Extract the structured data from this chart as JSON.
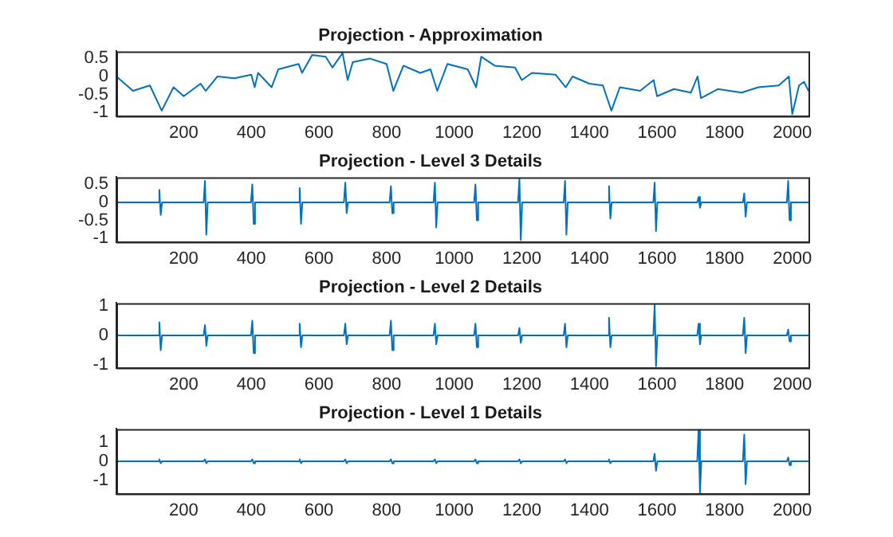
{
  "chart_data": [
    {
      "type": "line",
      "title": "Projection - Approximation",
      "color": "#0072bd",
      "xlim": [
        1,
        2048
      ],
      "xticks": [
        200,
        400,
        600,
        800,
        1000,
        1200,
        1400,
        1600,
        1800,
        2000
      ],
      "ylim": [
        -1.1,
        0.7
      ],
      "yticks": [
        -1,
        -0.5,
        0,
        0.5
      ],
      "x": [
        1,
        50,
        100,
        135,
        170,
        200,
        250,
        265,
        300,
        350,
        400,
        410,
        420,
        460,
        480,
        540,
        550,
        580,
        620,
        640,
        670,
        685,
        700,
        750,
        800,
        820,
        850,
        900,
        930,
        950,
        980,
        1040,
        1065,
        1080,
        1120,
        1180,
        1200,
        1230,
        1300,
        1330,
        1350,
        1400,
        1440,
        1465,
        1490,
        1550,
        1590,
        1600,
        1650,
        1700,
        1720,
        1730,
        1780,
        1850,
        1900,
        1960,
        1990,
        2000,
        2020,
        2035,
        2048
      ],
      "values": [
        0,
        -0.4,
        -0.25,
        -0.95,
        -0.3,
        -0.55,
        -0.2,
        -0.4,
        0,
        -0.05,
        0.05,
        -0.3,
        0.1,
        -0.3,
        0.2,
        0.35,
        0.1,
        0.6,
        0.55,
        0.25,
        0.65,
        -0.1,
        0.4,
        0.5,
        0.35,
        -0.4,
        0.3,
        0.1,
        0.2,
        -0.4,
        0.35,
        0.2,
        -0.3,
        0.55,
        0.3,
        0.25,
        -0.1,
        0.1,
        0.05,
        -0.3,
        0,
        -0.2,
        -0.25,
        -0.95,
        -0.3,
        -0.4,
        -0.1,
        -0.55,
        -0.35,
        -0.45,
        0,
        -0.6,
        -0.35,
        -0.45,
        -0.3,
        -0.25,
        0,
        -1.05,
        -0.25,
        -0.15,
        -0.4
      ]
    },
    {
      "type": "line",
      "title": "Projection - Level 3 Details",
      "color": "#0072bd",
      "xlim": [
        1,
        2048
      ],
      "xticks": [
        200,
        400,
        600,
        800,
        1000,
        1200,
        1400,
        1600,
        1800,
        2000
      ],
      "ylim": [
        -1.1,
        0.7
      ],
      "yticks": [
        -1,
        -0.5,
        0,
        0.5
      ],
      "x": [
        1,
        124,
        128,
        132,
        136,
        259,
        263,
        267,
        271,
        399,
        403,
        407,
        411,
        539,
        543,
        547,
        551,
        674,
        678,
        682,
        686,
        809,
        813,
        817,
        821,
        939,
        943,
        947,
        951,
        1059,
        1063,
        1067,
        1071,
        1189,
        1193,
        1197,
        1201,
        1324,
        1328,
        1332,
        1336,
        1454,
        1458,
        1462,
        1466,
        1589,
        1593,
        1597,
        1601,
        1719,
        1723,
        1727,
        1731,
        1854,
        1858,
        1862,
        1866,
        1984,
        1988,
        1992,
        1996,
        2048
      ],
      "values": [
        0,
        0,
        0.35,
        -0.35,
        0,
        0,
        0.6,
        -0.9,
        0,
        0,
        0.5,
        -0.6,
        0,
        0,
        0.4,
        -0.6,
        0,
        0,
        0.55,
        -0.3,
        0,
        0,
        0.45,
        -0.3,
        0,
        0,
        0.55,
        -0.7,
        0,
        0,
        0.5,
        -0.5,
        0,
        0,
        0.65,
        -1.05,
        0,
        0,
        0.6,
        -0.9,
        0,
        0,
        0.45,
        -0.45,
        0,
        0,
        0.55,
        -0.8,
        0,
        0,
        0.15,
        -0.15,
        0,
        0,
        0.25,
        -0.4,
        0,
        0,
        0.6,
        -0.5,
        0,
        0
      ]
    },
    {
      "type": "line",
      "title": "Projection - Level 2 Details",
      "color": "#0072bd",
      "xlim": [
        1,
        2048
      ],
      "xticks": [
        200,
        400,
        600,
        800,
        1000,
        1200,
        1400,
        1600,
        1800,
        2000
      ],
      "ylim": [
        -1.1,
        1.1
      ],
      "yticks": [
        -1,
        0,
        1
      ],
      "x": [
        1,
        124,
        128,
        132,
        136,
        259,
        263,
        267,
        271,
        399,
        403,
        407,
        411,
        539,
        543,
        547,
        551,
        674,
        678,
        682,
        686,
        809,
        813,
        817,
        821,
        939,
        943,
        947,
        951,
        1059,
        1063,
        1067,
        1071,
        1189,
        1193,
        1197,
        1201,
        1324,
        1328,
        1332,
        1336,
        1454,
        1458,
        1462,
        1466,
        1589,
        1593,
        1597,
        1601,
        1719,
        1723,
        1727,
        1731,
        1854,
        1858,
        1862,
        1866,
        1984,
        1988,
        1992,
        1996,
        2048
      ],
      "values": [
        0,
        0,
        0.45,
        -0.5,
        0,
        0,
        0.35,
        -0.35,
        0,
        0,
        0.5,
        -0.6,
        0,
        0,
        0.4,
        -0.4,
        0,
        0,
        0.4,
        -0.3,
        0,
        0,
        0.5,
        -0.5,
        0,
        0,
        0.4,
        -0.3,
        0,
        0,
        0.4,
        -0.4,
        0,
        0,
        0.25,
        -0.25,
        0,
        0,
        0.4,
        -0.4,
        0,
        0,
        0.6,
        -0.4,
        0,
        0,
        1.05,
        -1.05,
        0,
        0,
        0.4,
        -0.3,
        0,
        0,
        0.6,
        -0.6,
        0,
        0,
        0.2,
        -0.2,
        0,
        0
      ]
    },
    {
      "type": "line",
      "title": "Projection - Level 1 Details",
      "color": "#0072bd",
      "xlim": [
        1,
        2048
      ],
      "xticks": [
        200,
        400,
        600,
        800,
        1000,
        1200,
        1400,
        1600,
        1800,
        2000
      ],
      "ylim": [
        -1.7,
        1.7
      ],
      "yticks": [
        -1,
        0,
        1
      ],
      "x": [
        1,
        124,
        128,
        132,
        136,
        259,
        263,
        267,
        271,
        399,
        403,
        407,
        411,
        539,
        543,
        547,
        551,
        674,
        678,
        682,
        686,
        809,
        813,
        817,
        821,
        939,
        943,
        947,
        951,
        1059,
        1063,
        1067,
        1071,
        1189,
        1193,
        1197,
        1201,
        1324,
        1328,
        1332,
        1336,
        1454,
        1458,
        1462,
        1466,
        1589,
        1593,
        1597,
        1601,
        1719,
        1723,
        1727,
        1731,
        1854,
        1858,
        1862,
        1866,
        1984,
        1988,
        1992,
        1996,
        2048
      ],
      "values": [
        0,
        0,
        0.1,
        -0.1,
        0,
        0,
        0.1,
        -0.1,
        0,
        0,
        0.1,
        -0.1,
        0,
        0,
        0.1,
        -0.1,
        0,
        0,
        0.1,
        -0.1,
        0,
        0,
        0.1,
        -0.1,
        0,
        0,
        0.1,
        -0.1,
        0,
        0,
        0.1,
        -0.1,
        0,
        0,
        0.1,
        -0.1,
        0,
        0,
        0.1,
        -0.1,
        0,
        0,
        0.1,
        -0.1,
        0,
        0,
        0.4,
        -0.5,
        0,
        0,
        1.65,
        -1.65,
        0,
        0,
        1.4,
        -1.2,
        0,
        0,
        0.2,
        -0.2,
        0,
        0
      ]
    }
  ]
}
